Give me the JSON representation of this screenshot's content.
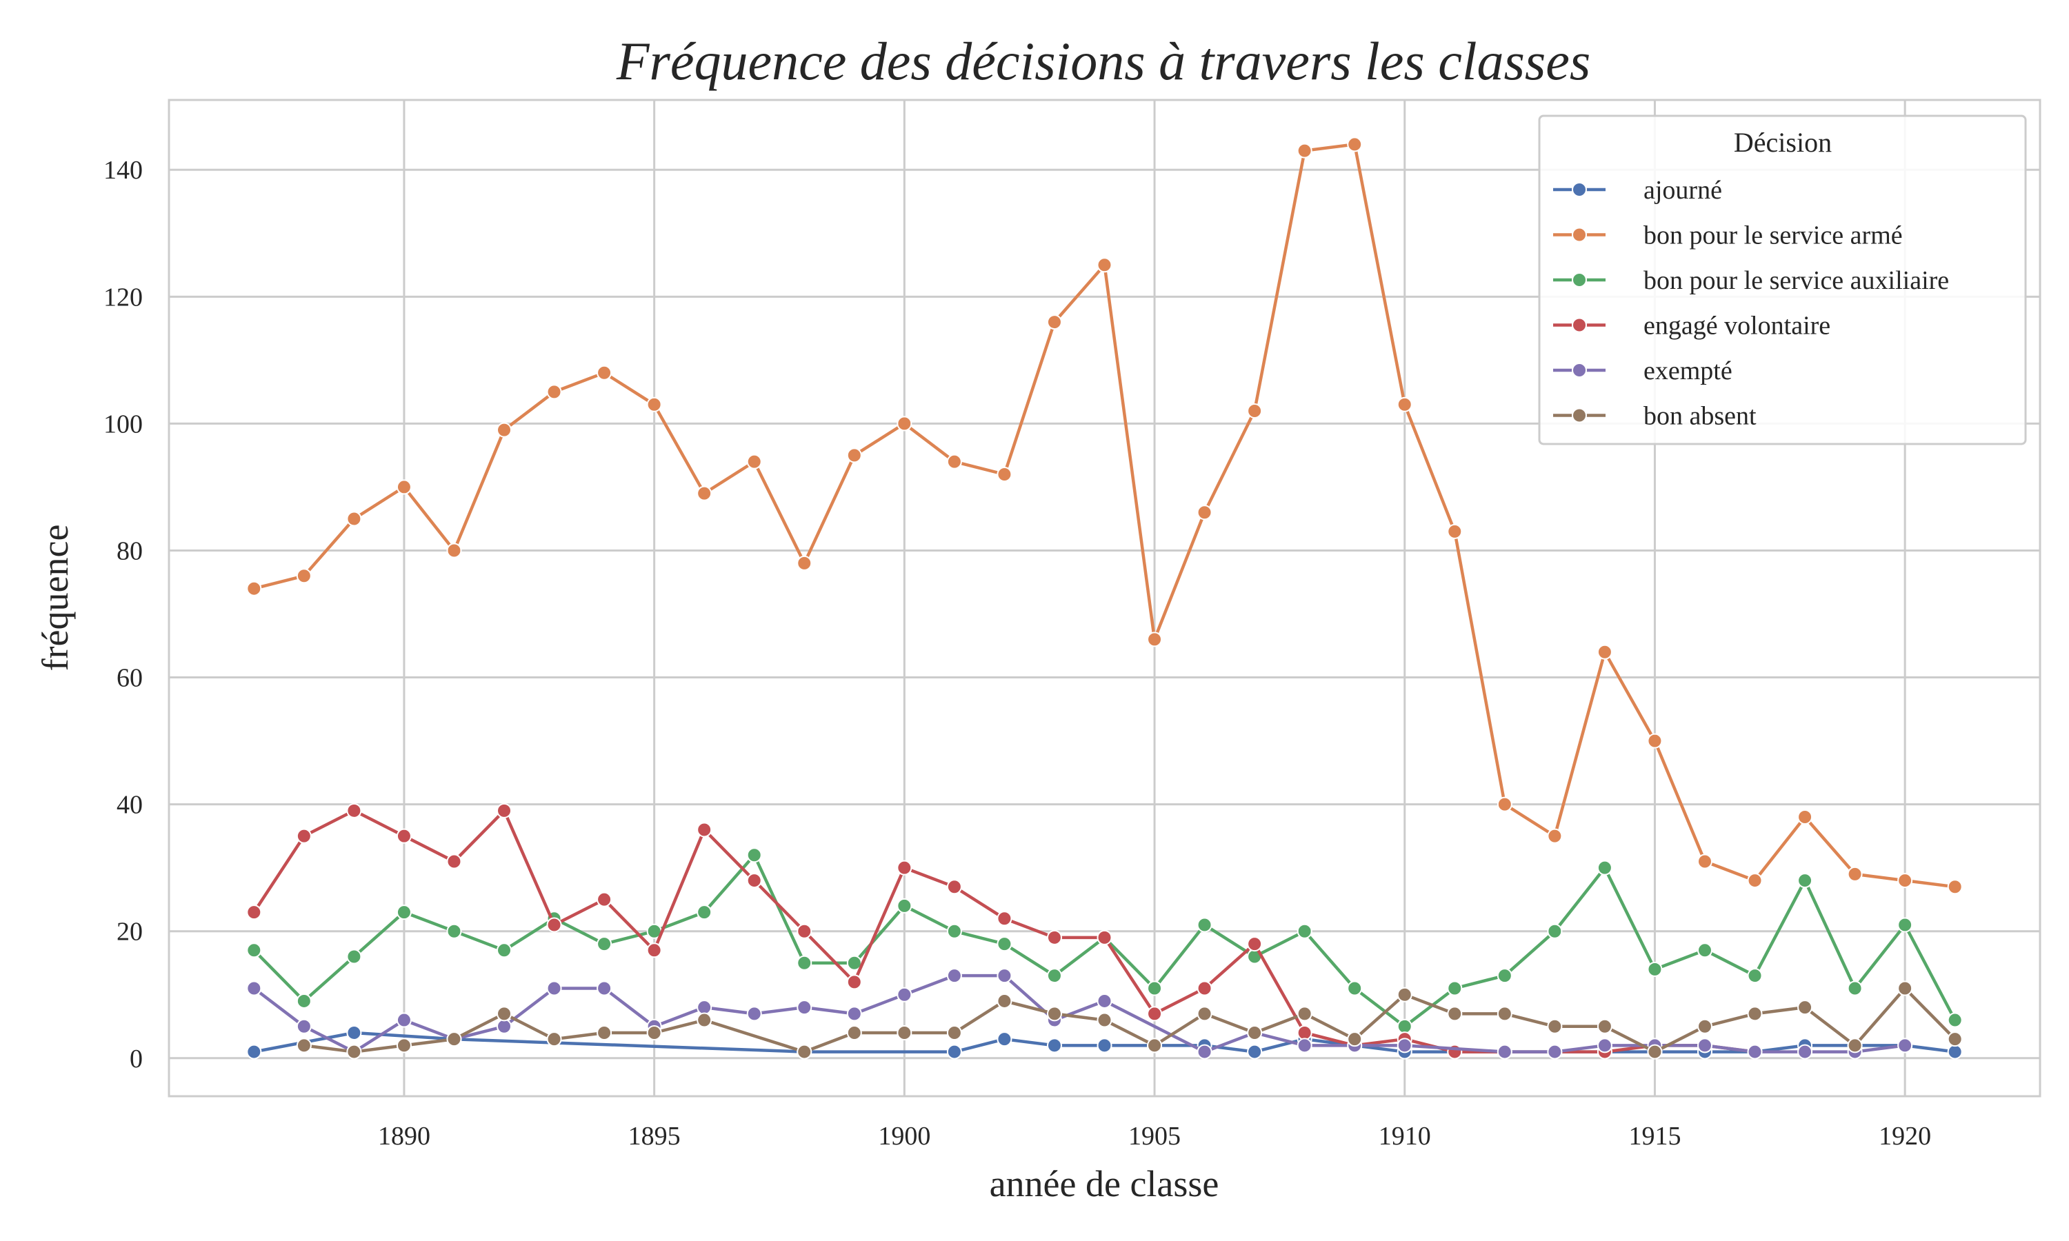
{
  "chart_data": {
    "type": "line",
    "title": "Fréquence des décisions à travers les classes",
    "xlabel": "année de classe",
    "ylabel": "fréquence",
    "xlim": [
      1885.3,
      1922.7
    ],
    "ylim": [
      -6,
      151
    ],
    "xticks": [
      1890,
      1895,
      1900,
      1905,
      1910,
      1915,
      1920
    ],
    "yticks": [
      0,
      20,
      40,
      60,
      80,
      100,
      120,
      140
    ],
    "grid": true,
    "legend": {
      "title": "Décision",
      "placement": "top-right"
    },
    "series": [
      {
        "name": "ajourné",
        "color": "#4c72b0",
        "points": [
          [
            1887,
            1
          ],
          [
            1889,
            4
          ],
          [
            1891,
            3
          ],
          [
            1898,
            1
          ],
          [
            1901,
            1
          ],
          [
            1902,
            3
          ],
          [
            1903,
            2
          ],
          [
            1904,
            2
          ],
          [
            1905,
            2
          ],
          [
            1906,
            2
          ],
          [
            1907,
            1
          ],
          [
            1908,
            3
          ],
          [
            1909,
            2
          ],
          [
            1910,
            1
          ],
          [
            1911,
            1
          ],
          [
            1912,
            1
          ],
          [
            1913,
            1
          ],
          [
            1914,
            1
          ],
          [
            1915,
            1
          ],
          [
            1916,
            1
          ],
          [
            1917,
            1
          ],
          [
            1918,
            2
          ],
          [
            1919,
            2
          ],
          [
            1920,
            2
          ],
          [
            1921,
            1
          ]
        ]
      },
      {
        "name": "bon pour le service armé",
        "color": "#dd8452",
        "points": [
          [
            1887,
            74
          ],
          [
            1888,
            76
          ],
          [
            1889,
            85
          ],
          [
            1890,
            90
          ],
          [
            1891,
            80
          ],
          [
            1892,
            99
          ],
          [
            1893,
            105
          ],
          [
            1894,
            108
          ],
          [
            1895,
            103
          ],
          [
            1896,
            89
          ],
          [
            1897,
            94
          ],
          [
            1898,
            78
          ],
          [
            1899,
            95
          ],
          [
            1900,
            100
          ],
          [
            1901,
            94
          ],
          [
            1902,
            92
          ],
          [
            1903,
            116
          ],
          [
            1904,
            125
          ],
          [
            1905,
            66
          ],
          [
            1906,
            86
          ],
          [
            1907,
            102
          ],
          [
            1908,
            143
          ],
          [
            1909,
            144
          ],
          [
            1910,
            103
          ],
          [
            1911,
            83
          ],
          [
            1912,
            40
          ],
          [
            1913,
            35
          ],
          [
            1914,
            64
          ],
          [
            1915,
            50
          ],
          [
            1916,
            31
          ],
          [
            1917,
            28
          ],
          [
            1918,
            38
          ],
          [
            1919,
            29
          ],
          [
            1920,
            28
          ],
          [
            1921,
            27
          ]
        ]
      },
      {
        "name": "bon pour le service auxiliaire",
        "color": "#55a868",
        "points": [
          [
            1887,
            17
          ],
          [
            1888,
            9
          ],
          [
            1889,
            16
          ],
          [
            1890,
            23
          ],
          [
            1891,
            20
          ],
          [
            1892,
            17
          ],
          [
            1893,
            22
          ],
          [
            1894,
            18
          ],
          [
            1895,
            20
          ],
          [
            1896,
            23
          ],
          [
            1897,
            32
          ],
          [
            1898,
            15
          ],
          [
            1899,
            15
          ],
          [
            1900,
            24
          ],
          [
            1901,
            20
          ],
          [
            1902,
            18
          ],
          [
            1903,
            13
          ],
          [
            1904,
            19
          ],
          [
            1905,
            11
          ],
          [
            1906,
            21
          ],
          [
            1907,
            16
          ],
          [
            1908,
            20
          ],
          [
            1909,
            11
          ],
          [
            1910,
            5
          ],
          [
            1911,
            11
          ],
          [
            1912,
            13
          ],
          [
            1913,
            20
          ],
          [
            1914,
            30
          ],
          [
            1915,
            14
          ],
          [
            1916,
            17
          ],
          [
            1917,
            13
          ],
          [
            1918,
            28
          ],
          [
            1919,
            11
          ],
          [
            1920,
            21
          ],
          [
            1921,
            6
          ]
        ]
      },
      {
        "name": "engagé volontaire",
        "color": "#c44e52",
        "points": [
          [
            1887,
            23
          ],
          [
            1888,
            35
          ],
          [
            1889,
            39
          ],
          [
            1890,
            35
          ],
          [
            1891,
            31
          ],
          [
            1892,
            39
          ],
          [
            1893,
            21
          ],
          [
            1894,
            25
          ],
          [
            1895,
            17
          ],
          [
            1896,
            36
          ],
          [
            1897,
            28
          ],
          [
            1898,
            20
          ],
          [
            1899,
            12
          ],
          [
            1900,
            30
          ],
          [
            1901,
            27
          ],
          [
            1902,
            22
          ],
          [
            1903,
            19
          ],
          [
            1904,
            19
          ],
          [
            1905,
            7
          ],
          [
            1906,
            11
          ],
          [
            1907,
            18
          ],
          [
            1908,
            4
          ],
          [
            1909,
            2
          ],
          [
            1910,
            3
          ],
          [
            1911,
            1
          ],
          [
            1912,
            1
          ],
          [
            1913,
            1
          ],
          [
            1914,
            1
          ],
          [
            1915,
            2
          ],
          [
            1916,
            2
          ],
          [
            1917,
            1
          ]
        ]
      },
      {
        "name": "exempté",
        "color": "#8172b3",
        "points": [
          [
            1887,
            11
          ],
          [
            1888,
            5
          ],
          [
            1889,
            1
          ],
          [
            1890,
            6
          ],
          [
            1891,
            3
          ],
          [
            1892,
            5
          ],
          [
            1893,
            11
          ],
          [
            1894,
            11
          ],
          [
            1895,
            5
          ],
          [
            1896,
            8
          ],
          [
            1897,
            7
          ],
          [
            1898,
            8
          ],
          [
            1899,
            7
          ],
          [
            1900,
            10
          ],
          [
            1901,
            13
          ],
          [
            1902,
            13
          ],
          [
            1903,
            6
          ],
          [
            1904,
            9
          ],
          [
            1906,
            1
          ],
          [
            1907,
            4
          ],
          [
            1908,
            2
          ],
          [
            1909,
            2
          ],
          [
            1910,
            2
          ],
          [
            1912,
            1
          ],
          [
            1913,
            1
          ],
          [
            1914,
            2
          ],
          [
            1915,
            2
          ],
          [
            1916,
            2
          ],
          [
            1917,
            1
          ],
          [
            1918,
            1
          ],
          [
            1919,
            1
          ],
          [
            1920,
            2
          ]
        ]
      },
      {
        "name": "bon absent",
        "color": "#937860",
        "points": [
          [
            1888,
            2
          ],
          [
            1889,
            1
          ],
          [
            1890,
            2
          ],
          [
            1891,
            3
          ],
          [
            1892,
            7
          ],
          [
            1893,
            3
          ],
          [
            1894,
            4
          ],
          [
            1895,
            4
          ],
          [
            1896,
            6
          ],
          [
            1898,
            1
          ],
          [
            1899,
            4
          ],
          [
            1900,
            4
          ],
          [
            1901,
            4
          ],
          [
            1902,
            9
          ],
          [
            1903,
            7
          ],
          [
            1904,
            6
          ],
          [
            1905,
            2
          ],
          [
            1906,
            7
          ],
          [
            1907,
            4
          ],
          [
            1908,
            7
          ],
          [
            1909,
            3
          ],
          [
            1910,
            10
          ],
          [
            1911,
            7
          ],
          [
            1912,
            7
          ],
          [
            1913,
            5
          ],
          [
            1914,
            5
          ],
          [
            1915,
            1
          ],
          [
            1916,
            5
          ],
          [
            1917,
            7
          ],
          [
            1918,
            8
          ],
          [
            1919,
            2
          ],
          [
            1920,
            11
          ],
          [
            1921,
            3
          ]
        ]
      }
    ]
  }
}
